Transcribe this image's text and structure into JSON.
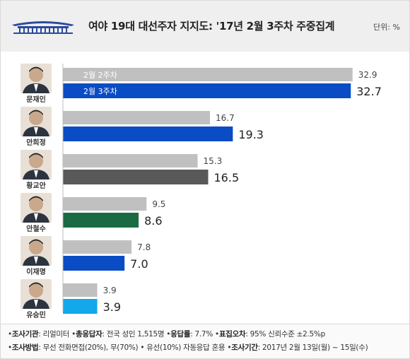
{
  "header": {
    "title": "여야 19대 대선주자 지지도: '17년 2월 3주차 주중집계",
    "unit": "단위: %"
  },
  "chart_data": {
    "type": "bar",
    "orientation": "horizontal",
    "title": "여야 19대 대선주자 지지도: '17년 2월 3주차 주중집계",
    "unit": "%",
    "xlim": [
      0,
      33
    ],
    "categories": [
      "문재인",
      "안희정",
      "황교안",
      "안철수",
      "이재명",
      "유승민"
    ],
    "series": [
      {
        "name": "2월 2주차",
        "values": [
          32.9,
          16.7,
          15.3,
          9.5,
          7.8,
          3.9
        ],
        "color": "#c0c0c0"
      },
      {
        "name": "2월 3주차",
        "values": [
          32.7,
          19.3,
          16.5,
          8.6,
          7.0,
          3.9
        ]
      }
    ],
    "current_colors": [
      "#0a4cc4",
      "#0a4cc4",
      "#595959",
      "#1a6b44",
      "#0a4cc4",
      "#12a8ea"
    ],
    "value_labels_prev": [
      "32.9",
      "16.7",
      "15.3",
      "9.5",
      "7.8",
      "3.9"
    ],
    "value_labels_curr": [
      "32.7",
      "19.3",
      "16.5",
      "8.6",
      "7.0",
      "3.9"
    ]
  },
  "footer": {
    "line1": [
      {
        "label": "조사기관",
        "value": "리얼미터"
      },
      {
        "label": "총응답자",
        "value": "전국 성인 1,515명"
      },
      {
        "label": "응답률",
        "value": "7.7%"
      },
      {
        "label": "표집오차",
        "value": "95% 신뢰수준 ±2.5%p"
      }
    ],
    "line2": [
      {
        "label": "조사방법",
        "value": "무선 전화면접(20%), 무(70%) • 유선(10%) 자동응답 혼용"
      },
      {
        "label": "조사기간",
        "value": "2017년 2월 13일(월) ~ 15일(수)"
      }
    ]
  }
}
